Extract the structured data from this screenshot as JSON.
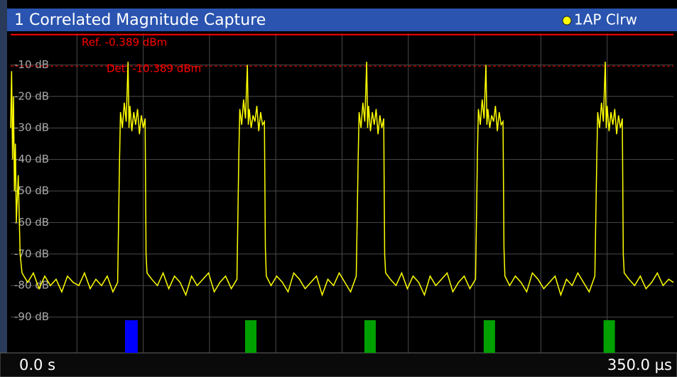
{
  "chart_data": {
    "type": "line",
    "title": "1 Correlated Magnitude Capture",
    "xlim": [
      0,
      350
    ],
    "xticks": [
      {
        "value": 0,
        "label": "0.0 s"
      },
      {
        "value": 350,
        "label": "350.0 µs"
      }
    ],
    "xgrid": [
      35,
      70,
      105,
      140,
      175,
      210,
      245,
      280,
      315
    ],
    "ylim": [
      -100,
      0
    ],
    "yticks": [
      {
        "value": -10,
        "label": "-10 dB"
      },
      {
        "value": -20,
        "label": "-20 dB"
      },
      {
        "value": -30,
        "label": "-30 dB"
      },
      {
        "value": -40,
        "label": "-40 dB"
      },
      {
        "value": -50,
        "label": "-50 dB"
      },
      {
        "value": -60,
        "label": "-60 dB"
      },
      {
        "value": -70,
        "label": "-70 dB"
      },
      {
        "value": -80,
        "label": "-80 dB"
      },
      {
        "value": -90,
        "label": "-90 dB"
      }
    ],
    "grid": true,
    "ref_line": {
      "label": "Ref. -0.389 dBm",
      "value": -0.389,
      "color": "#ff0000"
    },
    "det_line": {
      "label": "Det. -10.389 dBm",
      "value": -10.389,
      "color": "#ff0000"
    },
    "slot_markers": [
      {
        "x0": 60.4,
        "x1": 67.1,
        "y": -91,
        "color": "#0000ff"
      },
      {
        "x0": 123.8,
        "x1": 129.8,
        "y": -91,
        "color": "#00a000"
      },
      {
        "x0": 186.8,
        "x1": 192.8,
        "y": -91,
        "color": "#00a000"
      },
      {
        "x0": 249.8,
        "x1": 255.8,
        "y": -91,
        "color": "#00a000"
      },
      {
        "x0": 313.1,
        "x1": 319.1,
        "y": -91,
        "color": "#00a000"
      }
    ],
    "x": [
      0,
      0.5,
      1,
      1.5,
      2,
      2.5,
      3,
      4,
      5,
      6,
      9,
      12,
      15,
      18,
      21,
      24,
      27,
      30,
      33,
      36,
      39,
      42,
      45,
      48,
      51,
      54,
      56.5,
      57.5,
      58,
      59,
      60,
      61,
      62,
      62.5,
      63,
      64,
      65,
      66,
      67,
      68,
      69,
      70,
      71,
      71.5,
      72,
      74.5,
      77.5,
      80.5,
      83.5,
      86.5,
      89.5,
      92.5,
      95.5,
      98.5,
      101.5,
      104.5,
      107.5,
      110.5,
      113.5,
      116.5,
      119.5,
      120.5,
      121,
      122,
      123,
      124,
      125,
      125.5,
      126,
      127,
      128,
      129,
      130,
      131,
      132,
      133,
      134,
      134.5,
      135,
      137.5,
      140.5,
      143.5,
      146.5,
      149.5,
      152.5,
      155.5,
      158.5,
      161.5,
      164.5,
      167.5,
      170.5,
      173.5,
      176.5,
      179.5,
      182.5,
      183.5,
      184,
      185,
      186,
      187,
      188,
      188.5,
      189,
      190,
      191,
      192,
      193,
      194,
      195,
      196,
      197,
      197.5,
      198,
      200.5,
      203.5,
      206.5,
      209.5,
      212.5,
      215.5,
      218.5,
      221.5,
      224.5,
      227.5,
      230.5,
      233.5,
      236.5,
      239.5,
      242.5,
      245.5,
      246.5,
      247,
      248,
      249,
      250,
      251,
      251.5,
      252,
      253,
      254,
      255,
      256,
      257,
      258,
      259,
      260,
      260.5,
      261,
      263.5,
      266.5,
      269.5,
      272.5,
      275.5,
      278.5,
      281.5,
      284.5,
      287.5,
      290.5,
      293.5,
      296.5,
      299.5,
      302.5,
      305.5,
      308.5,
      309.5,
      310,
      311,
      312,
      313,
      314,
      314.5,
      315,
      316,
      317,
      318,
      319,
      320,
      321,
      322,
      323,
      323.5,
      324,
      326.5,
      329.5,
      332.5,
      335.5,
      338.5,
      341.5,
      344.5,
      347.5,
      350
    ],
    "series": [
      {
        "name": "1AP Clrw",
        "color": "#ffff00",
        "values": [
          -30,
          -12,
          -40,
          -20,
          -50,
          -35,
          -60,
          -45,
          -70,
          -76,
          -79,
          -76,
          -81,
          -77,
          -80,
          -78,
          -82,
          -77,
          -79,
          -80,
          -76,
          -81,
          -78,
          -80,
          -77,
          -82,
          -79,
          -40,
          -25,
          -30,
          -22,
          -28,
          -9,
          -30,
          -23,
          -31,
          -25,
          -29,
          -24,
          -32,
          -26,
          -30,
          -27,
          -70,
          -76,
          -78,
          -80,
          -76,
          -81,
          -77,
          -79,
          -83,
          -77,
          -80,
          -78,
          -76,
          -82,
          -79,
          -77,
          -81,
          -78,
          -38,
          -24,
          -29,
          -21,
          -27,
          -10,
          -29,
          -24,
          -30,
          -26,
          -28,
          -23,
          -31,
          -25,
          -29,
          -28,
          -68,
          -77,
          -80,
          -77,
          -79,
          -82,
          -76,
          -78,
          -81,
          -79,
          -77,
          -83,
          -78,
          -80,
          -76,
          -79,
          -82,
          -77,
          -40,
          -25,
          -30,
          -22,
          -28,
          -9,
          -30,
          -23,
          -31,
          -25,
          -29,
          -24,
          -32,
          -26,
          -30,
          -27,
          -70,
          -76,
          -78,
          -80,
          -76,
          -81,
          -77,
          -79,
          -83,
          -77,
          -80,
          -78,
          -76,
          -82,
          -79,
          -77,
          -81,
          -78,
          -38,
          -24,
          -29,
          -21,
          -27,
          -10,
          -29,
          -24,
          -30,
          -26,
          -28,
          -23,
          -31,
          -25,
          -29,
          -28,
          -68,
          -77,
          -80,
          -77,
          -79,
          -82,
          -76,
          -78,
          -81,
          -79,
          -77,
          -83,
          -78,
          -80,
          -76,
          -79,
          -82,
          -77,
          -40,
          -25,
          -30,
          -22,
          -28,
          -9,
          -30,
          -23,
          -31,
          -25,
          -29,
          -24,
          -32,
          -26,
          -30,
          -27,
          -70,
          -76,
          -78,
          -80,
          -77,
          -81,
          -79,
          -76,
          -80,
          -78,
          -79
        ]
      }
    ]
  }
}
